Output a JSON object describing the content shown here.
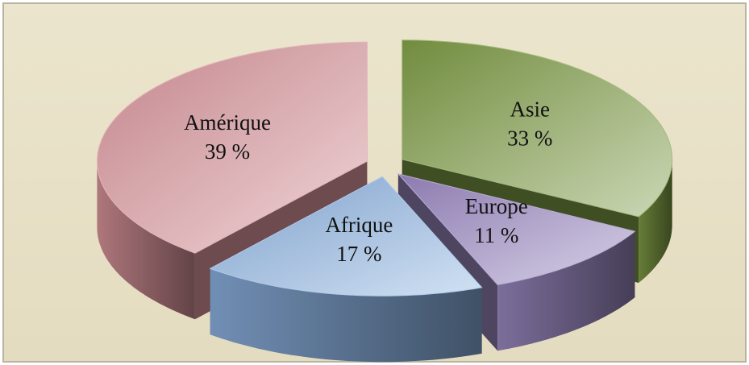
{
  "chart_data": {
    "type": "pie3d",
    "categories": [
      "Asie",
      "Europe",
      "Afrique",
      "Amérique"
    ],
    "values": [
      33,
      11,
      17,
      39
    ],
    "value_labels": [
      "33 %",
      "11 %",
      "17 %",
      "39 %"
    ],
    "colors": [
      "#7e9c45",
      "#9b89c2",
      "#8db3e2",
      "#d9959b"
    ]
  }
}
